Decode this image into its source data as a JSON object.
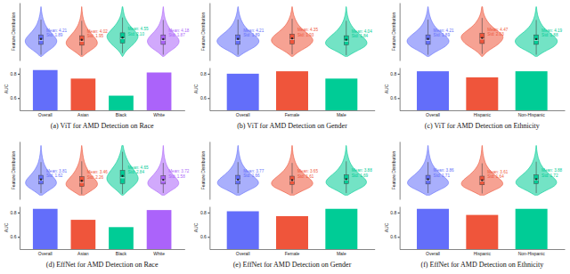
{
  "chart_data": [
    {
      "type": "violin",
      "y_label": "Feature Distribution",
      "tick_labels": false,
      "ylim": [
        -1,
        13
      ],
      "density_at": [
        0,
        1,
        2,
        3,
        4,
        5,
        6,
        7,
        8,
        9,
        10,
        11,
        12
      ],
      "groups": [
        {
          "color": "#636efa",
          "mean": 4.21,
          "mean_label": "Mean: 4.21",
          "std_label": "Std: 1.89",
          "whisker_low": 0.4,
          "q1": 2.9,
          "median": 3.9,
          "q3": 5.2,
          "whisker_high": 8.9,
          "density": [
            0.05,
            0.3,
            0.7,
            0.95,
            1.0,
            0.8,
            0.55,
            0.35,
            0.22,
            0.13,
            0.07,
            0.03,
            0.01
          ]
        },
        {
          "color": "#ef553b",
          "mean": 4.02,
          "mean_label": "Mean: 4.02",
          "std_label": "Std: 1.95",
          "whisker_low": 0.3,
          "q1": 2.7,
          "median": 3.7,
          "q3": 5.0,
          "whisker_high": 8.6,
          "density": [
            0.06,
            0.35,
            0.78,
            1.0,
            0.92,
            0.7,
            0.47,
            0.3,
            0.18,
            0.1,
            0.05,
            0.02,
            0.01
          ]
        },
        {
          "color": "#00cc96",
          "mean": 4.55,
          "mean_label": "Mean: 4.55",
          "std_label": "Std: 2.10",
          "whisker_low": 0.8,
          "q1": 3.2,
          "median": 4.3,
          "q3": 5.7,
          "whisker_high": 9.4,
          "density": [
            0.02,
            0.15,
            0.4,
            0.7,
            0.9,
            1.0,
            0.8,
            0.55,
            0.35,
            0.2,
            0.1,
            0.05,
            0.02
          ]
        },
        {
          "color": "#ab63fa",
          "mean": 4.18,
          "mean_label": "Mean: 4.18",
          "std_label": "Std: 1.87",
          "whisker_low": 0.4,
          "q1": 2.9,
          "median": 3.9,
          "q3": 5.2,
          "whisker_high": 8.8,
          "density": [
            0.05,
            0.3,
            0.72,
            0.96,
            1.0,
            0.8,
            0.54,
            0.34,
            0.21,
            0.12,
            0.06,
            0.03,
            0.01
          ]
        }
      ]
    },
    {
      "type": "bar",
      "title": "(a) ViT for AMD Detection on Race",
      "y_label": "AUC",
      "categories": [
        "Overall",
        "Asian",
        "Black",
        "White"
      ],
      "values": [
        0.83,
        0.76,
        0.62,
        0.81
      ],
      "colors": [
        "#636efa",
        "#ef553b",
        "#00cc96",
        "#ab63fa"
      ],
      "ylim": [
        0.5,
        0.85
      ],
      "yticks": [
        0.6,
        0.8
      ]
    },
    {
      "type": "violin",
      "y_label": "Feature Distribution",
      "tick_labels": false,
      "ylim": [
        -1,
        13
      ],
      "density_at": [
        0,
        1,
        2,
        3,
        4,
        5,
        6,
        7,
        8,
        9,
        10,
        11,
        12
      ],
      "groups": [
        {
          "color": "#636efa",
          "mean": 4.21,
          "mean_label": "Mean: 4.21",
          "std_label": "Std: 1.89",
          "whisker_low": 0.4,
          "q1": 2.9,
          "median": 3.9,
          "q3": 5.2,
          "whisker_high": 8.9,
          "density": [
            0.05,
            0.3,
            0.7,
            0.95,
            1.0,
            0.8,
            0.55,
            0.35,
            0.22,
            0.13,
            0.07,
            0.03,
            0.01
          ]
        },
        {
          "color": "#ef553b",
          "mean": 4.35,
          "mean_label": "Mean: 4.35",
          "std_label": "Std: 1.93",
          "whisker_low": 0.5,
          "q1": 3.0,
          "median": 4.1,
          "q3": 5.4,
          "whisker_high": 9.1,
          "density": [
            0.04,
            0.25,
            0.62,
            0.9,
            1.0,
            0.85,
            0.6,
            0.38,
            0.24,
            0.14,
            0.07,
            0.03,
            0.01
          ]
        },
        {
          "color": "#00cc96",
          "mean": 4.04,
          "mean_label": "Mean: 4.04",
          "std_label": "Std: 1.84",
          "whisker_low": 0.3,
          "q1": 2.8,
          "median": 3.7,
          "q3": 5.0,
          "whisker_high": 8.6,
          "density": [
            0.06,
            0.35,
            0.78,
            1.0,
            0.92,
            0.7,
            0.47,
            0.3,
            0.18,
            0.1,
            0.05,
            0.02,
            0.01
          ]
        }
      ]
    },
    {
      "type": "bar",
      "title": "(b) ViT for AMD Detection on Gender",
      "y_label": "AUC",
      "categories": [
        "Overall",
        "Female",
        "Male"
      ],
      "values": [
        0.8,
        0.82,
        0.76
      ],
      "colors": [
        "#636efa",
        "#ef553b",
        "#00cc96"
      ],
      "ylim": [
        0.5,
        0.85
      ],
      "yticks": [
        0.6,
        0.8
      ]
    },
    {
      "type": "violin",
      "y_label": "Feature Distribution",
      "tick_labels": false,
      "ylim": [
        -1,
        13
      ],
      "density_at": [
        0,
        1,
        2,
        3,
        4,
        5,
        6,
        7,
        8,
        9,
        10,
        11,
        12
      ],
      "groups": [
        {
          "color": "#636efa",
          "mean": 4.21,
          "mean_label": "Mean: 4.21",
          "std_label": "Std: 1.89",
          "whisker_low": 0.4,
          "q1": 2.9,
          "median": 3.9,
          "q3": 5.2,
          "whisker_high": 8.9,
          "density": [
            0.05,
            0.3,
            0.7,
            0.95,
            1.0,
            0.8,
            0.55,
            0.35,
            0.22,
            0.13,
            0.07,
            0.03,
            0.01
          ]
        },
        {
          "color": "#ef553b",
          "mean": 4.47,
          "mean_label": "Mean: 4.47",
          "std_label": "Std: 2.03",
          "whisker_low": 0.6,
          "q1": 3.1,
          "median": 4.2,
          "q3": 5.6,
          "whisker_high": 9.3,
          "density": [
            0.03,
            0.18,
            0.48,
            0.78,
            0.95,
            1.0,
            0.76,
            0.5,
            0.31,
            0.18,
            0.09,
            0.04,
            0.02
          ]
        },
        {
          "color": "#00cc96",
          "mean": 4.19,
          "mean_label": "Mean: 4.19",
          "std_label": "Std: 1.88",
          "whisker_low": 0.4,
          "q1": 2.9,
          "median": 3.9,
          "q3": 5.2,
          "whisker_high": 8.8,
          "density": [
            0.05,
            0.3,
            0.72,
            0.96,
            1.0,
            0.8,
            0.54,
            0.34,
            0.21,
            0.12,
            0.06,
            0.03,
            0.01
          ]
        }
      ]
    },
    {
      "type": "bar",
      "title": "(c) ViT for AMD Detection on Ethnicity",
      "y_label": "AUC",
      "categories": [
        "Overall",
        "Hispanic",
        "Non-Hispanic"
      ],
      "values": [
        0.82,
        0.77,
        0.82
      ],
      "colors": [
        "#636efa",
        "#ef553b",
        "#00cc96"
      ],
      "ylim": [
        0.5,
        0.85
      ],
      "yticks": [
        0.6,
        0.8
      ]
    },
    {
      "type": "violin",
      "y_label": "Feature Distribution",
      "tick_labels": false,
      "ylim": [
        -1,
        13
      ],
      "density_at": [
        0,
        1,
        2,
        3,
        4,
        5,
        6,
        7,
        8,
        9,
        10,
        11,
        12
      ],
      "groups": [
        {
          "color": "#636efa",
          "mean": 3.81,
          "mean_label": "Mean: 3.81",
          "std_label": "Std: 1.62",
          "whisker_low": 0.5,
          "q1": 2.7,
          "median": 3.6,
          "q3": 4.8,
          "whisker_high": 8.0,
          "density": [
            0.08,
            0.4,
            0.85,
            1.0,
            0.85,
            0.6,
            0.4,
            0.25,
            0.15,
            0.09,
            0.05,
            0.02,
            0.01
          ]
        },
        {
          "color": "#ef553b",
          "mean": 3.46,
          "mean_label": "Mean: 3.46",
          "std_label": "Std: 2.26",
          "whisker_low": 0.2,
          "q1": 2.1,
          "median": 3.1,
          "q3": 4.5,
          "whisker_high": 8.2,
          "density": [
            0.15,
            0.55,
            0.95,
            1.0,
            0.78,
            0.55,
            0.38,
            0.25,
            0.16,
            0.1,
            0.06,
            0.03,
            0.01
          ]
        },
        {
          "color": "#00cc96",
          "mean": 4.65,
          "mean_label": "Mean: 4.65",
          "std_label": "Std: 2.84",
          "whisker_low": 0.3,
          "q1": 2.8,
          "median": 4.2,
          "q3": 6.0,
          "whisker_high": 10.5,
          "density": [
            0.05,
            0.3,
            0.62,
            0.88,
            1.0,
            0.9,
            0.72,
            0.52,
            0.36,
            0.24,
            0.15,
            0.08,
            0.04
          ]
        },
        {
          "color": "#ab63fa",
          "mean": 3.72,
          "mean_label": "Mean: 3.72",
          "std_label": "Std: 1.58",
          "whisker_low": 0.5,
          "q1": 2.7,
          "median": 3.5,
          "q3": 4.7,
          "whisker_high": 7.8,
          "density": [
            0.08,
            0.42,
            0.88,
            1.0,
            0.83,
            0.58,
            0.38,
            0.23,
            0.14,
            0.08,
            0.04,
            0.02,
            0.01
          ]
        }
      ]
    },
    {
      "type": "bar",
      "title": "(d) EffNet for AMD Detection on Race",
      "y_label": "AUC",
      "categories": [
        "Overall",
        "Asian",
        "Black",
        "White"
      ],
      "values": [
        0.83,
        0.74,
        0.68,
        0.82
      ],
      "colors": [
        "#636efa",
        "#ef553b",
        "#00cc96",
        "#ab63fa"
      ],
      "ylim": [
        0.5,
        0.85
      ],
      "yticks": [
        0.6,
        0.8
      ]
    },
    {
      "type": "violin",
      "y_label": "Feature Distribution",
      "tick_labels": false,
      "ylim": [
        -1,
        13
      ],
      "density_at": [
        0,
        1,
        2,
        3,
        4,
        5,
        6,
        7,
        8,
        9,
        10,
        11,
        12
      ],
      "groups": [
        {
          "color": "#636efa",
          "mean": 3.77,
          "mean_label": "Mean: 3.77",
          "std_label": "Std: 1.66",
          "whisker_low": 0.5,
          "q1": 2.7,
          "median": 3.6,
          "q3": 4.8,
          "whisker_high": 8.0,
          "density": [
            0.08,
            0.4,
            0.85,
            1.0,
            0.85,
            0.6,
            0.4,
            0.25,
            0.15,
            0.09,
            0.05,
            0.02,
            0.01
          ]
        },
        {
          "color": "#ef553b",
          "mean": 3.65,
          "mean_label": "Mean: 3.65",
          "std_label": "Std: 1.61",
          "whisker_low": 0.4,
          "q1": 2.6,
          "median": 3.5,
          "q3": 4.6,
          "whisker_high": 7.8,
          "density": [
            0.09,
            0.44,
            0.9,
            1.0,
            0.82,
            0.57,
            0.37,
            0.23,
            0.14,
            0.08,
            0.04,
            0.02,
            0.01
          ]
        },
        {
          "color": "#00cc96",
          "mean": 3.88,
          "mean_label": "Mean: 3.88",
          "std_label": "Std: 1.69",
          "whisker_low": 0.5,
          "q1": 2.8,
          "median": 3.7,
          "q3": 4.9,
          "whisker_high": 8.2,
          "density": [
            0.07,
            0.37,
            0.8,
            0.98,
            0.88,
            0.63,
            0.42,
            0.27,
            0.16,
            0.1,
            0.05,
            0.02,
            0.01
          ]
        }
      ]
    },
    {
      "type": "bar",
      "title": "(e) EffNet for AMD Detection on Gender",
      "y_label": "AUC",
      "categories": [
        "Overall",
        "Female",
        "Male"
      ],
      "values": [
        0.81,
        0.77,
        0.83
      ],
      "colors": [
        "#636efa",
        "#ef553b",
        "#00cc96"
      ],
      "ylim": [
        0.5,
        0.85
      ],
      "yticks": [
        0.6,
        0.8
      ]
    },
    {
      "type": "violin",
      "y_label": "Feature Distribution",
      "tick_labels": false,
      "ylim": [
        -1,
        13
      ],
      "density_at": [
        0,
        1,
        2,
        3,
        4,
        5,
        6,
        7,
        8,
        9,
        10,
        11,
        12
      ],
      "groups": [
        {
          "color": "#636efa",
          "mean": 3.86,
          "mean_label": "Mean: 3.86",
          "std_label": "Std: 1.71",
          "whisker_low": 0.5,
          "q1": 2.7,
          "median": 3.6,
          "q3": 4.8,
          "whisker_high": 8.0,
          "density": [
            0.08,
            0.4,
            0.85,
            1.0,
            0.85,
            0.6,
            0.4,
            0.25,
            0.15,
            0.09,
            0.05,
            0.02,
            0.01
          ]
        },
        {
          "color": "#ef553b",
          "mean": 3.61,
          "mean_label": "Mean: 3.61",
          "std_label": "Std: 1.64",
          "whisker_low": 0.4,
          "q1": 2.5,
          "median": 3.4,
          "q3": 4.6,
          "whisker_high": 7.7,
          "density": [
            0.1,
            0.46,
            0.92,
            1.0,
            0.8,
            0.55,
            0.36,
            0.22,
            0.13,
            0.08,
            0.04,
            0.02,
            0.01
          ]
        },
        {
          "color": "#00cc96",
          "mean": 3.88,
          "mean_label": "Mean: 3.88",
          "std_label": "Std: 1.72",
          "whisker_low": 0.5,
          "q1": 2.8,
          "median": 3.7,
          "q3": 4.9,
          "whisker_high": 8.1,
          "density": [
            0.07,
            0.38,
            0.82,
            0.99,
            0.87,
            0.62,
            0.41,
            0.26,
            0.16,
            0.09,
            0.05,
            0.02,
            0.01
          ]
        }
      ]
    },
    {
      "type": "bar",
      "title": "(f) EffNet for AMD Detection on Ethnicity",
      "y_label": "AUC",
      "categories": [
        "Overall",
        "Hispanic",
        "Non-Hispanic"
      ],
      "values": [
        0.83,
        0.78,
        0.83
      ],
      "colors": [
        "#636efa",
        "#ef553b",
        "#00cc96"
      ],
      "ylim": [
        0.5,
        0.85
      ],
      "yticks": [
        0.6,
        0.8
      ]
    }
  ]
}
